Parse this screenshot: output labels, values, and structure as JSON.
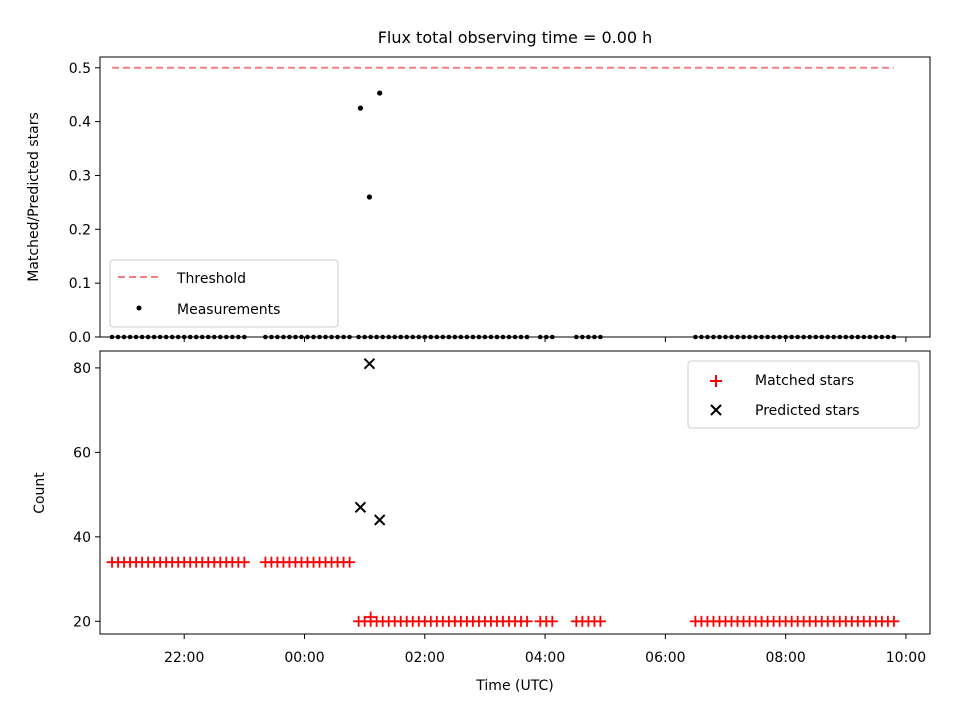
{
  "chart_data": [
    {
      "type": "scatter",
      "title": "Flux total observing time = 0.00 h",
      "xlabel": "",
      "ylabel": "Matched/Predicted stars",
      "xlim": [
        -3.4,
        10.4
      ],
      "ylim": [
        0,
        0.52
      ],
      "yticks": [
        0.0,
        0.1,
        0.2,
        0.3,
        0.4,
        0.5
      ],
      "ytick_labels": [
        "0.0",
        "0.1",
        "0.2",
        "0.3",
        "0.4",
        "0.5"
      ],
      "threshold": {
        "name": "Threshold",
        "value": 0.5,
        "x_range": [
          -3.2,
          9.8
        ],
        "color": "#f08080"
      },
      "legend": {
        "placement": "lower-left",
        "entries": [
          "Threshold",
          "Measurements"
        ]
      },
      "series": [
        {
          "name": "Measurements",
          "color": "#000000",
          "points": [
            [
              0.93,
              0.425
            ],
            [
              1.08,
              0.26
            ],
            [
              1.25,
              0.453
            ]
          ],
          "zero_segments": [
            [
              -3.2,
              -0.95
            ],
            [
              -0.65,
              0.8
            ],
            [
              0.9,
              3.75
            ],
            [
              3.92,
              4.15
            ],
            [
              4.52,
              5.0
            ],
            [
              6.5,
              9.8
            ]
          ]
        }
      ]
    },
    {
      "type": "scatter",
      "title": "",
      "xlabel": "Time (UTC)",
      "ylabel": "Count",
      "xlim": [
        -3.4,
        10.4
      ],
      "ylim": [
        17,
        84
      ],
      "xticks": [
        -2,
        0,
        2,
        4,
        6,
        8,
        10
      ],
      "xtick_labels": [
        "22:00",
        "00:00",
        "02:00",
        "04:00",
        "06:00",
        "08:00",
        "10:00"
      ],
      "yticks": [
        20,
        40,
        60,
        80
      ],
      "ytick_labels": [
        "20",
        "40",
        "60",
        "80"
      ],
      "legend": {
        "placement": "top-right",
        "entries": [
          "Matched stars",
          "Predicted stars"
        ]
      },
      "series": [
        {
          "name": "Matched stars",
          "marker": "+",
          "color": "#ff0000",
          "runs": [
            {
              "value": 34,
              "segments": [
                [
                  -3.2,
                  -0.95
                ],
                [
                  -0.65,
                  0.8
                ]
              ]
            },
            {
              "value": 20,
              "segments": [
                [
                  0.9,
                  3.75
                ],
                [
                  3.92,
                  4.15
                ],
                [
                  4.52,
                  5.0
                ],
                [
                  6.5,
                  9.8
                ]
              ]
            }
          ],
          "points": [
            [
              1.1,
              21
            ]
          ]
        },
        {
          "name": "Predicted stars",
          "marker": "x",
          "color": "#000000",
          "points": [
            [
              0.93,
              47
            ],
            [
              1.08,
              81
            ],
            [
              1.25,
              44
            ]
          ]
        }
      ]
    }
  ]
}
